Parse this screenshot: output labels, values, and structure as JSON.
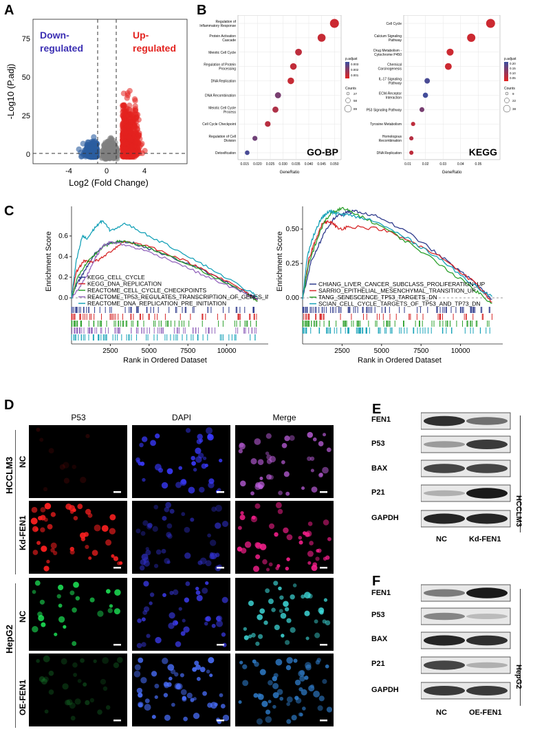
{
  "panels": {
    "a": "A",
    "b": "B",
    "c": "C",
    "d": "D",
    "e": "E",
    "f": "F"
  },
  "colors": {
    "down": "#2c5ea0",
    "up": "#e3231f",
    "ns": "#808080",
    "label_down": "#3b2fb3",
    "label_up": "#e3231f"
  },
  "volcano": {
    "down_label_1": "Down-",
    "down_label_2": "regulated",
    "up_label_1": "Up-",
    "up_label_2": "regulated",
    "xlabel": "Log2 (Fold Change)",
    "ylabel": "-Log10 (P.adj)",
    "xticks": [
      "-4",
      "0",
      "4"
    ],
    "yticks": [
      "0",
      "25",
      "50",
      "75"
    ]
  },
  "gobp": {
    "tag": "GO-BP",
    "xlabel": "GeneRatio",
    "terms": [
      "Regulation of Inflammatory Response",
      "Protein Activation Cascade",
      "Meiotic Cell Cycle",
      "Regulation of Protein Processing",
      "DNA Replication",
      "DNA Recombination",
      "Meiotic Cell Cycle Process",
      "Cell Cycle Checkpoint",
      "Regulation of Cell Division",
      "Detoxification"
    ],
    "xticks": [
      "0.015",
      "0.020",
      "0.025",
      "0.030",
      "0.035",
      "0.040",
      "0.045",
      "0.050"
    ],
    "legend_title": "p.adjust",
    "legend_vals": [
      "0.003",
      "0.002",
      "0.001"
    ],
    "count_title": "Counts",
    "count_vals": [
      "27",
      "58",
      "89"
    ]
  },
  "kegg": {
    "tag": "KEGG",
    "xlabel": "GeneRatio",
    "terms": [
      "Cell Cycle",
      "Calcium Signaling Pathway",
      "Drug Metabolism - Cytochrome P450",
      "Chemical Carcinogenesis",
      "IL-17 Signaling Pathway",
      "ECM-Receptor Interaction",
      "P53 Signaling Pathway",
      "Tyrosine Metabolism",
      "Homologous Recombination",
      "DNA Replication"
    ],
    "xticks": [
      "0.01",
      "0.02",
      "0.03",
      "0.04",
      "0.05"
    ],
    "legend_title": "p.adjust",
    "legend_vals": [
      "0.20",
      "0.15",
      "0.10",
      "0.05"
    ],
    "count_title": "Counts",
    "count_vals": [
      "9",
      "22",
      "38"
    ]
  },
  "gsea_left": {
    "ylabel": "Enrichment Score",
    "xlabel": "Rank in Ordered Dataset",
    "xticks": [
      "2500",
      "5000",
      "7500",
      "10000"
    ],
    "yticks": [
      "0.0",
      "0.2",
      "0.4",
      "0.6"
    ],
    "legend": [
      "KEGG_CELL_CYCLE",
      "KEGG_DNA_REPLICATION",
      "REACTOME_CELL_CYCLE_CHECKPOINTS",
      "REACTOME_TP53_REGULATES_TRANSCRIPTION_OF_GENES_INVO",
      "REACTOME_DNA_REPLICATION_PRE_INITIATION"
    ]
  },
  "gsea_right": {
    "ylabel": "Enrichment Score",
    "xlabel": "Rank in Ordered Dataset",
    "xticks": [
      "2500",
      "5000",
      "7500",
      "10000"
    ],
    "yticks": [
      "0.00",
      "0.25",
      "0.50"
    ],
    "legend": [
      "CHIANG_LIVER_CANCER_SUBCLASS_PROLIFERATION_UP",
      "SARRIO_EPITHELIAL_MESENCHYMAL_TRANSITION_UP",
      "TANG_SENESCENCE_TP53_TARGETS_DN",
      "SCIAN_CELL_CYCLE_TARGETS_OF_TP53_AND_TP73_DN"
    ]
  },
  "if_panel": {
    "columns": [
      "P53",
      "DAPI",
      "Merge"
    ],
    "cell_lines": [
      "HCCLM3",
      "HepG2"
    ],
    "rows": [
      "NC",
      "Kd-FEN1",
      "NC",
      "OE-FEN1"
    ]
  },
  "wb_e": {
    "proteins": [
      "FEN1",
      "P53",
      "BAX",
      "P21",
      "GAPDH"
    ],
    "lanes": [
      "NC",
      "Kd-FEN1"
    ],
    "cell_line": "HCCLM3"
  },
  "wb_f": {
    "proteins": [
      "FEN1",
      "P53",
      "BAX",
      "P21",
      "GAPDH"
    ],
    "lanes": [
      "NC",
      "OE-FEN1"
    ],
    "cell_line": "HepG2"
  },
  "chart_data": [
    {
      "type": "scatter",
      "title": "",
      "xlabel": "Log2 (Fold Change)",
      "ylabel": "-Log10 (P.adj)",
      "xlim": [
        -6.5,
        6.5
      ],
      "ylim": [
        -3,
        95
      ],
      "thresholds": {
        "x": [
          -1,
          1
        ],
        "y": 1.3
      },
      "series": [
        {
          "name": "Down-regulated"
        },
        {
          "name": "Up-regulated"
        }
      ]
    },
    {
      "type": "scatter",
      "title": "GO-BP",
      "xlabel": "GeneRatio",
      "categories": [
        "Regulation of Inflammatory Response",
        "Protein Activation Cascade",
        "Meiotic Cell Cycle",
        "Regulation of Protein Processing",
        "DNA Replication",
        "DNA Recombination",
        "Meiotic Cell Cycle Process",
        "Cell Cycle Checkpoint",
        "Regulation of Cell Division",
        "Detoxification"
      ],
      "values": [
        0.05,
        0.045,
        0.036,
        0.034,
        0.033,
        0.028,
        0.027,
        0.024,
        0.019,
        0.016
      ],
      "p_adjust": [
        0.0005,
        0.0006,
        0.0008,
        0.0007,
        0.0006,
        0.0022,
        0.0011,
        0.0009,
        0.0024,
        0.0032
      ],
      "counts": [
        89,
        75,
        58,
        55,
        55,
        48,
        48,
        42,
        32,
        27
      ],
      "xlim": [
        0.014,
        0.051
      ]
    },
    {
      "type": "scatter",
      "title": "KEGG",
      "xlabel": "GeneRatio",
      "categories": [
        "Cell Cycle",
        "Calcium Signaling Pathway",
        "Drug Metabolism - Cytochrome P450",
        "Chemical Carcinogenesis",
        "IL-17 Signaling Pathway",
        "ECM-Receptor Interaction",
        "P53 Signaling Pathway",
        "Tyrosine Metabolism",
        "Homologous Recombination",
        "DNA Replication"
      ],
      "values": [
        0.057,
        0.046,
        0.034,
        0.033,
        0.021,
        0.02,
        0.018,
        0.013,
        0.012,
        0.012
      ],
      "p_adjust": [
        0.03,
        0.03,
        0.03,
        0.03,
        0.2,
        0.21,
        0.14,
        0.05,
        0.06,
        0.05
      ],
      "counts": [
        38,
        34,
        26,
        25,
        17,
        15,
        13,
        9,
        9,
        9
      ],
      "xlim": [
        0.01,
        0.06
      ]
    },
    {
      "type": "line",
      "title": "",
      "xlabel": "Rank in Ordered Dataset",
      "ylabel": "Enrichment Score",
      "xlim": [
        0,
        12500
      ],
      "ylim": [
        -0.05,
        0.8
      ],
      "series": [
        {
          "name": "KEGG_CELL_CYCLE",
          "color": "#2e3a8c",
          "x": [
            0,
            300,
            800,
            1500,
            2200,
            3000,
            4000,
            6000,
            8000,
            10000,
            11500,
            12000
          ],
          "y": [
            0,
            0.12,
            0.25,
            0.43,
            0.52,
            0.55,
            0.53,
            0.42,
            0.3,
            0.15,
            0.03,
            -0.02
          ]
        },
        {
          "name": "KEGG_DNA_REPLICATION",
          "color": "#d62728",
          "x": [
            0,
            300,
            800,
            1300,
            1800,
            2600,
            3400,
            5000,
            7000,
            9000,
            11000,
            12000
          ],
          "y": [
            0,
            0.25,
            0.36,
            0.35,
            0.37,
            0.46,
            0.55,
            0.5,
            0.38,
            0.24,
            0.08,
            -0.03
          ]
        },
        {
          "name": "REACTOME_CELL_CYCLE_CHECKPOINTS",
          "color": "#2ca02c",
          "x": [
            0,
            400,
            900,
            1500,
            2100,
            2700,
            3500,
            5000,
            7000,
            9000,
            11000,
            12000
          ],
          "y": [
            0,
            0.2,
            0.32,
            0.42,
            0.5,
            0.54,
            0.55,
            0.48,
            0.36,
            0.22,
            0.06,
            -0.03
          ]
        },
        {
          "name": "REACTOME_TP53_REGULATES_TRANSCRIPTION_OF_GENES_INVO",
          "color": "#9467bd",
          "x": [
            0,
            500,
            1000,
            1500,
            2000,
            2500,
            3000,
            4500,
            6500,
            8500,
            10500,
            12000
          ],
          "y": [
            0,
            0.1,
            0.22,
            0.38,
            0.5,
            0.54,
            0.53,
            0.47,
            0.36,
            0.22,
            0.09,
            -0.02
          ]
        },
        {
          "name": "REACTOME_DNA_REPLICATION_PRE_INITIATION",
          "color": "#17a2b8",
          "x": [
            0,
            300,
            700,
            1000,
            1500,
            2000,
            2500,
            3500,
            5000,
            7000,
            9000,
            11500,
            12000
          ],
          "y": [
            0,
            0.35,
            0.6,
            0.57,
            0.68,
            0.75,
            0.65,
            0.72,
            0.6,
            0.45,
            0.28,
            0.06,
            0.01
          ]
        }
      ]
    },
    {
      "type": "line",
      "title": "",
      "xlabel": "Rank in Ordered Dataset",
      "ylabel": "Enrichment Score",
      "xlim": [
        0,
        12500
      ],
      "ylim": [
        -0.05,
        0.65
      ],
      "series": [
        {
          "name": "CHIANG_LIVER_CANCER_SUBCLASS_PROLIFERATION_UP",
          "color": "#2e3a8c",
          "x": [
            0,
            500,
            1000,
            1500,
            2000,
            2800,
            3500,
            5000,
            7000,
            9000,
            11000,
            12000
          ],
          "y": [
            0,
            0.25,
            0.38,
            0.5,
            0.58,
            0.62,
            0.63,
            0.58,
            0.45,
            0.28,
            0.1,
            -0.01
          ]
        },
        {
          "name": "SARRIO_EPITHELIAL_MESENCHYMAL_TRANSITION_UP",
          "color": "#d62728",
          "x": [
            0,
            400,
            800,
            1300,
            1800,
            2300,
            3000,
            5000,
            7000,
            9000,
            11000,
            12000
          ],
          "y": [
            0,
            0.28,
            0.42,
            0.55,
            0.55,
            0.5,
            0.52,
            0.5,
            0.4,
            0.28,
            0.1,
            -0.03
          ]
        },
        {
          "name": "TANG_SENESCENCE_TP53_TARGETS_DN",
          "color": "#2ca02c",
          "x": [
            0,
            400,
            900,
            1400,
            1900,
            2500,
            3200,
            5000,
            7000,
            9000,
            11000,
            12000
          ],
          "y": [
            0,
            0.25,
            0.42,
            0.56,
            0.62,
            0.65,
            0.62,
            0.52,
            0.38,
            0.22,
            0.05,
            -0.04
          ]
        },
        {
          "name": "SCIAN_CELL_CYCLE_TARGETS_OF_TP53_AND_TP73_DN",
          "color": "#17a2b8",
          "x": [
            0,
            300,
            700,
            1200,
            1700,
            2200,
            3000,
            4500,
            6500,
            8500,
            10500,
            12000
          ],
          "y": [
            0,
            0.3,
            0.46,
            0.58,
            0.63,
            0.61,
            0.6,
            0.56,
            0.44,
            0.3,
            0.12,
            0.01
          ]
        }
      ]
    }
  ]
}
